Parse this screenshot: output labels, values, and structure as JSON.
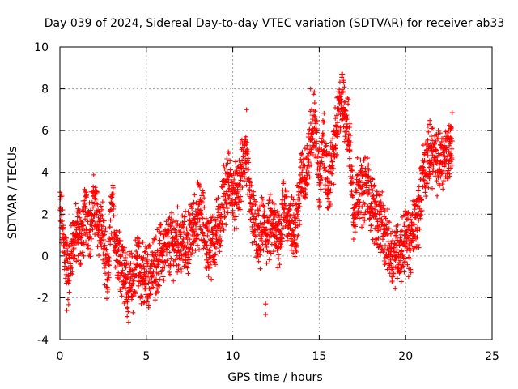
{
  "chart_data": {
    "type": "scatter",
    "title": "Day 039 of 2024, Sidereal Day-to-day VTEC variation (SDTVAR) for receiver ab33",
    "xlabel": "GPS time / hours",
    "ylabel": "SDTVAR / TECUs",
    "xlim": [
      0,
      25
    ],
    "ylim": [
      -4,
      10
    ],
    "xticks": [
      0,
      5,
      10,
      15,
      20,
      25
    ],
    "yticks": [
      -4,
      -2,
      0,
      2,
      4,
      6,
      8,
      10
    ],
    "grid": true,
    "marker": "+",
    "colors": {
      "series": "#ff0000",
      "grid": "#a0a0a0",
      "axis": "#000000"
    },
    "series": [
      {
        "name": "SDTVAR",
        "x": [
          0.0,
          0.25,
          0.5,
          0.75,
          1.0,
          1.25,
          1.5,
          1.75,
          2.0,
          2.25,
          2.5,
          2.75,
          3.0,
          3.25,
          3.5,
          3.75,
          4.0,
          4.25,
          4.5,
          4.75,
          5.0,
          5.25,
          5.5,
          5.75,
          6.0,
          6.25,
          6.5,
          6.75,
          7.0,
          7.25,
          7.5,
          7.75,
          8.0,
          8.25,
          8.5,
          8.75,
          9.0,
          9.25,
          9.5,
          9.75,
          10.0,
          10.25,
          10.5,
          10.75,
          11.0,
          11.25,
          11.5,
          11.75,
          12.0,
          12.25,
          12.5,
          12.75,
          13.0,
          13.25,
          13.5,
          13.75,
          14.0,
          14.25,
          14.5,
          14.75,
          15.0,
          15.25,
          15.5,
          15.75,
          16.0,
          16.25,
          16.5,
          16.75,
          17.0,
          17.25,
          17.5,
          17.75,
          18.0,
          18.25,
          18.5,
          18.75,
          19.0,
          19.25,
          19.5,
          19.75,
          20.0,
          20.25,
          20.5,
          20.75,
          21.0,
          21.25,
          21.5,
          21.75,
          22.0,
          22.25,
          22.5,
          22.7
        ],
        "y": [
          2.2,
          0.5,
          -1.0,
          0.8,
          1.0,
          0.9,
          2.0,
          1.5,
          2.5,
          1.5,
          1.0,
          -1.5,
          2.5,
          0.5,
          0.0,
          -1.0,
          -1.5,
          -1.2,
          0.0,
          -1.0,
          -1.0,
          -0.8,
          -0.5,
          0.0,
          0.2,
          0.5,
          0.5,
          0.8,
          0.6,
          0.5,
          0.8,
          1.5,
          2.0,
          1.8,
          0.5,
          0.5,
          1.0,
          1.5,
          3.0,
          3.5,
          3.0,
          2.8,
          4.0,
          5.0,
          2.5,
          1.5,
          0.5,
          1.5,
          1.0,
          1.5,
          1.0,
          1.2,
          2.5,
          1.5,
          1.2,
          2.0,
          4.0,
          4.0,
          5.5,
          6.5,
          3.5,
          5.5,
          3.2,
          4.5,
          6.0,
          7.5,
          7.0,
          5.5,
          2.0,
          3.5,
          3.0,
          3.5,
          2.5,
          2.0,
          1.8,
          1.0,
          0.5,
          0.0,
          0.3,
          0.2,
          1.0,
          0.5,
          1.5,
          2.0,
          4.0,
          4.5,
          5.0,
          4.5,
          4.5,
          4.8,
          5.0,
          5.5
        ]
      }
    ],
    "spread_points": [
      {
        "x": 0.4,
        "y": -2.6
      },
      {
        "x": 3.9,
        "y": -2.5
      },
      {
        "x": 4.9,
        "y": -2.2
      },
      {
        "x": 10.8,
        "y": 7.0
      },
      {
        "x": 11.9,
        "y": -2.8
      },
      {
        "x": 11.9,
        "y": -2.3
      },
      {
        "x": 14.5,
        "y": 8.0
      },
      {
        "x": 16.3,
        "y": 8.7
      },
      {
        "x": 16.4,
        "y": 8.4
      },
      {
        "x": 18.8,
        "y": -0.4
      },
      {
        "x": 21.4,
        "y": 6.3
      },
      {
        "x": 22.6,
        "y": 6.2
      }
    ]
  }
}
